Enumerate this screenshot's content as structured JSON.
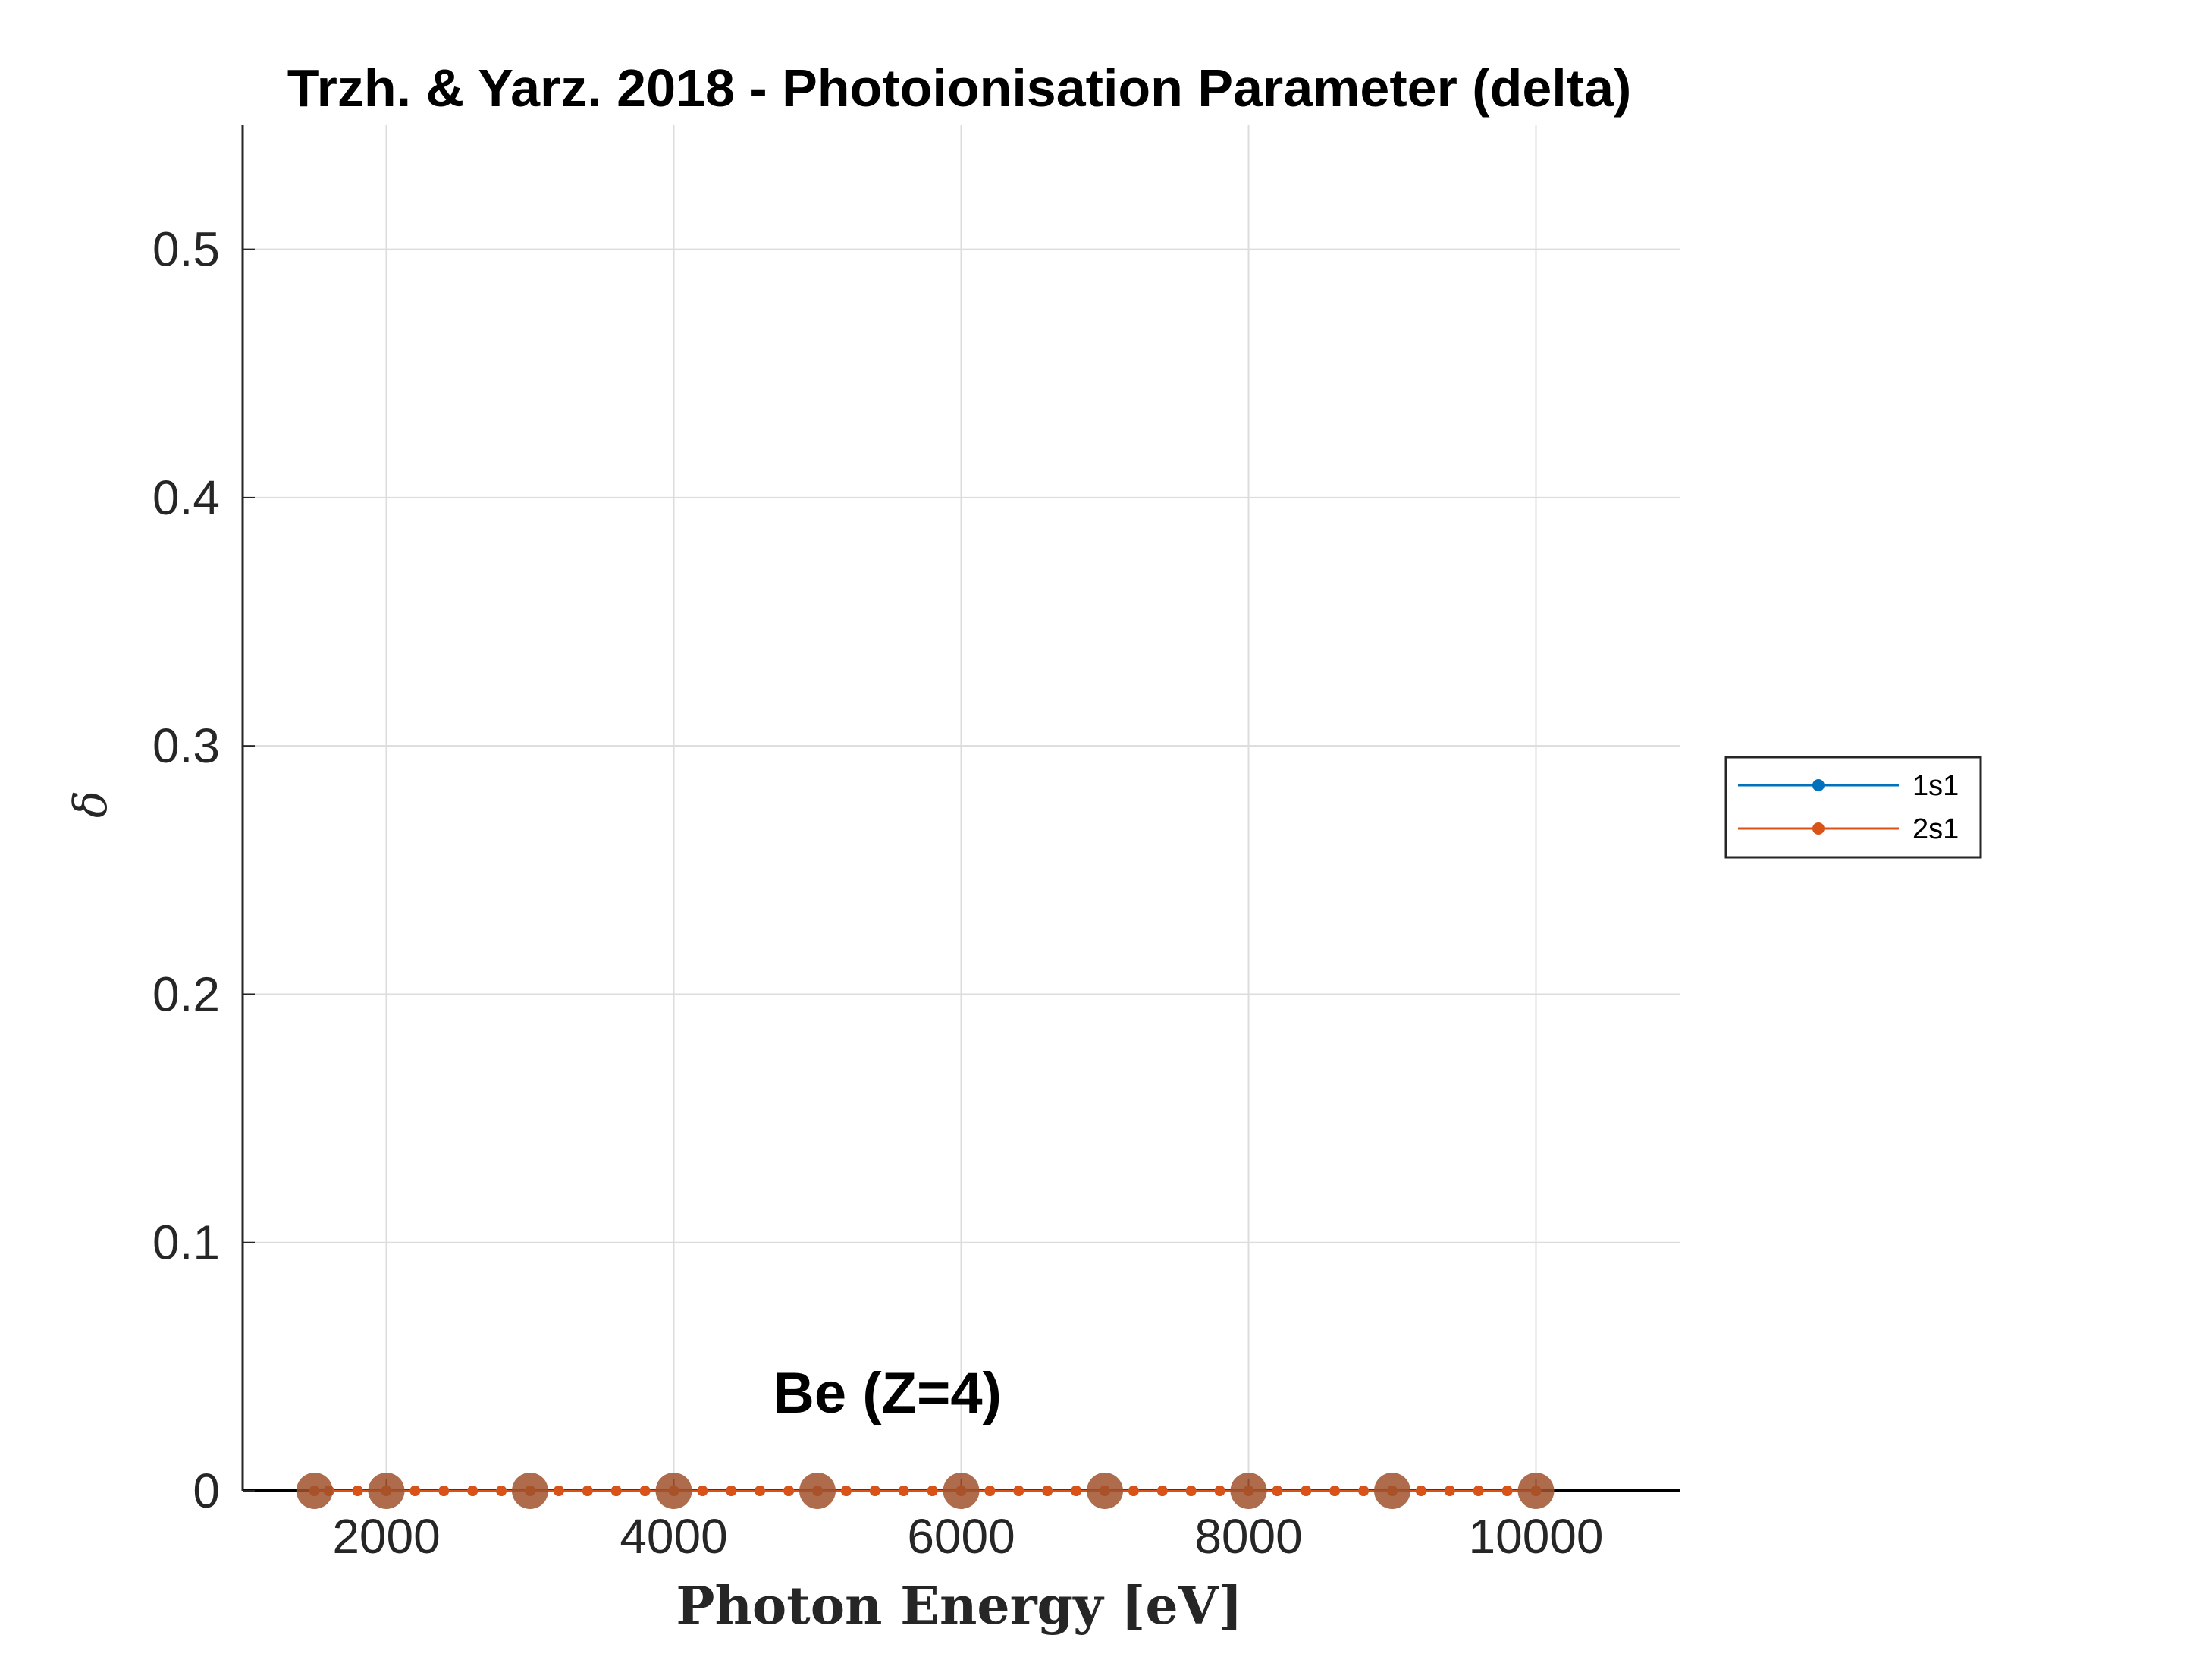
{
  "chart_data": {
    "type": "line",
    "title": "Trzh. & Yarz. 2018 - Photoionisation Parameter (delta)",
    "xlabel": "Photon Energy [eV]",
    "ylabel": "δ",
    "xlim": [
      1000,
      11000
    ],
    "ylim": [
      0,
      0.55
    ],
    "xticks": [
      2000,
      4000,
      6000,
      8000,
      10000
    ],
    "xtick_labels": [
      "2000",
      "4000",
      "6000",
      "8000",
      "10000"
    ],
    "yticks": [
      0,
      0.1,
      0.2,
      0.3,
      0.4,
      0.5
    ],
    "ytick_labels": [
      "0",
      "0.1",
      "0.2",
      "0.3",
      "0.4",
      "0.5"
    ],
    "grid": true,
    "legend_position": "outside-right",
    "annotation": "Be (Z=4)",
    "colors": {
      "1s1": "#0072BD",
      "2s1": "#D95319",
      "markers": "#A0522D",
      "grid": "#dcdcdc",
      "axis": "#262626"
    },
    "series": [
      {
        "name": "1s1",
        "color": "#0072BD",
        "x": [
          1500,
          1600,
          1800,
          2000,
          2200,
          2400,
          2600,
          2800,
          3000,
          3200,
          3400,
          3600,
          3800,
          4000,
          4200,
          4400,
          4600,
          4800,
          5000,
          5200,
          5400,
          5600,
          5800,
          6000,
          6200,
          6400,
          6600,
          6800,
          7000,
          7200,
          7400,
          7600,
          7800,
          8000,
          8200,
          8400,
          8600,
          8800,
          9000,
          9200,
          9400,
          9600,
          9800,
          10000
        ],
        "y": [
          0,
          0,
          0,
          0,
          0,
          0,
          0,
          0,
          0,
          0,
          0,
          0,
          0,
          0,
          0,
          0,
          0,
          0,
          0,
          0,
          0,
          0,
          0,
          0,
          0,
          0,
          0,
          0,
          0,
          0,
          0,
          0,
          0,
          0,
          0,
          0,
          0,
          0,
          0,
          0,
          0,
          0,
          0,
          0
        ]
      },
      {
        "name": "2s1",
        "color": "#D95319",
        "x": [
          1500,
          1600,
          1800,
          2000,
          2200,
          2400,
          2600,
          2800,
          3000,
          3200,
          3400,
          3600,
          3800,
          4000,
          4200,
          4400,
          4600,
          4800,
          5000,
          5200,
          5400,
          5600,
          5800,
          6000,
          6200,
          6400,
          6600,
          6800,
          7000,
          7200,
          7400,
          7600,
          7800,
          8000,
          8200,
          8400,
          8600,
          8800,
          9000,
          9200,
          9400,
          9600,
          9800,
          10000
        ],
        "y": [
          0,
          0,
          0,
          0,
          0,
          0,
          0,
          0,
          0,
          0,
          0,
          0,
          0,
          0,
          0,
          0,
          0,
          0,
          0,
          0,
          0,
          0,
          0,
          0,
          0,
          0,
          0,
          0,
          0,
          0,
          0,
          0,
          0,
          0,
          0,
          0,
          0,
          0,
          0,
          0,
          0,
          0,
          0,
          0
        ]
      },
      {
        "name": "",
        "type": "scatter",
        "color": "#A0522D",
        "x": [
          1500,
          2000,
          3000,
          4000,
          5000,
          6000,
          7000,
          8000,
          9000,
          10000
        ],
        "y": [
          0,
          0,
          0,
          0,
          0,
          0,
          0,
          0,
          0,
          0
        ]
      }
    ]
  }
}
